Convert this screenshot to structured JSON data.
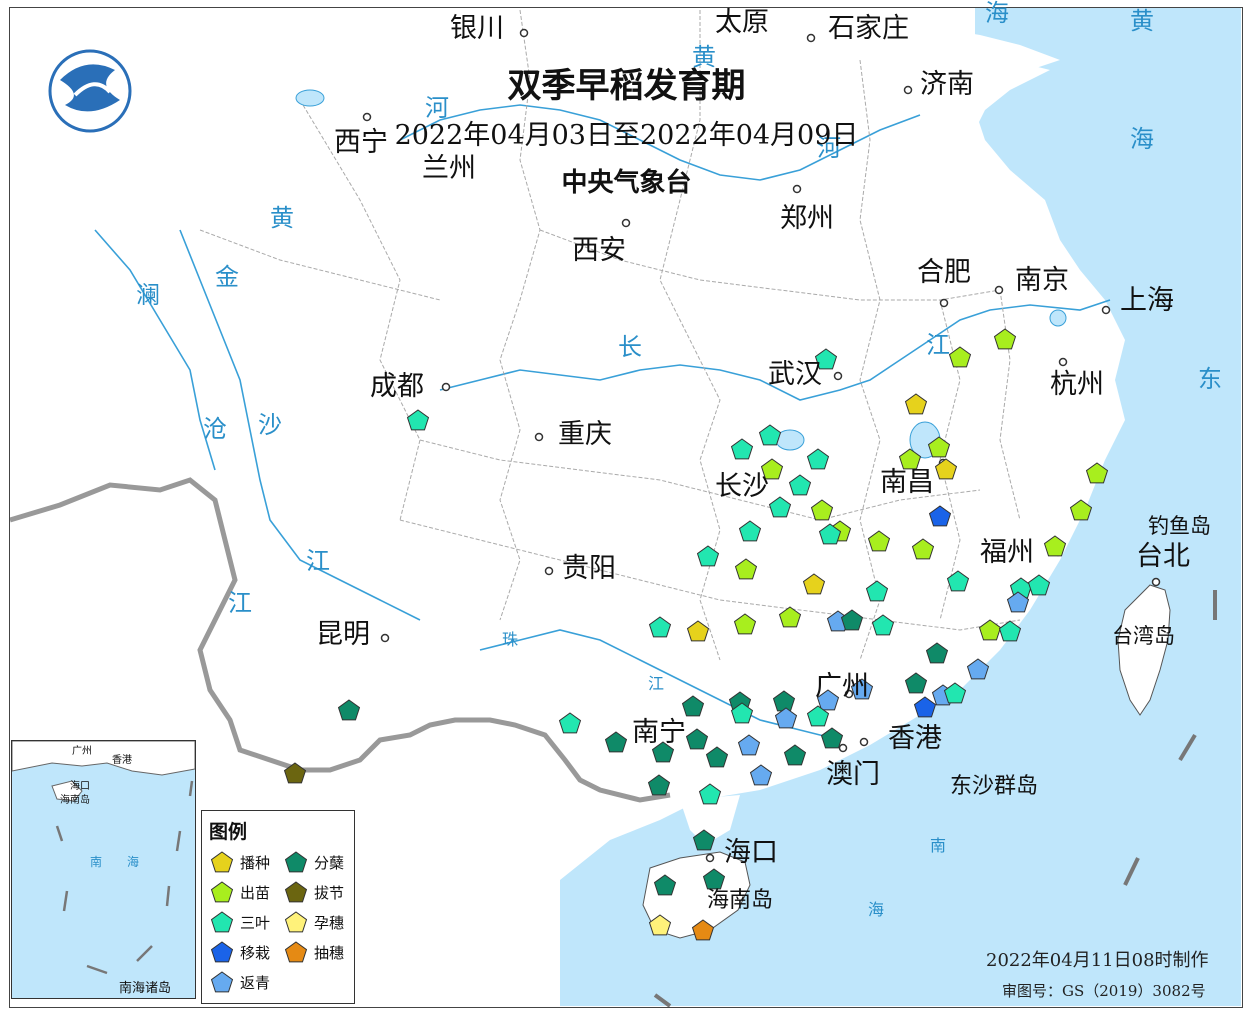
{
  "header": {
    "title": "双季早稻发育期",
    "date_range": "2022年04月03日至2022年04月09日",
    "issuer": "中央气象台"
  },
  "footer": {
    "made": "2022年04月11日08时制作",
    "review_no": "审图号：GS（2019）3082号"
  },
  "legend": {
    "title": "图例",
    "items": [
      {
        "label": "播种",
        "color": "#e6d21c"
      },
      {
        "label": "出苗",
        "color": "#a8ee1e"
      },
      {
        "label": "三叶",
        "color": "#22e6b0"
      },
      {
        "label": "移栽",
        "color": "#1a63e8"
      },
      {
        "label": "返青",
        "color": "#66aaf0"
      },
      {
        "label": "分蘖",
        "color": "#0f8a68"
      },
      {
        "label": "拔节",
        "color": "#6b6510"
      },
      {
        "label": "孕穗",
        "color": "#fff27a"
      },
      {
        "label": "抽穗",
        "color": "#e58a14"
      }
    ]
  },
  "cities": [
    "银川",
    "太原",
    "石家庄",
    "济南",
    "西宁",
    "兰州",
    "郑州",
    "西安",
    "合肥",
    "南京",
    "上海",
    "武汉",
    "杭州",
    "成都",
    "重庆",
    "长沙",
    "南昌",
    "福州",
    "台北",
    "贵阳",
    "昆明",
    "广州",
    "南宁",
    "香港",
    "澳门",
    "海口"
  ],
  "geo_labels": [
    "黄",
    "海",
    "黄",
    "河",
    "河",
    "黄",
    "金",
    "澜",
    "长",
    "江",
    "沧",
    "沙",
    "江",
    "江",
    "东",
    "钓鱼岛",
    "台湾岛",
    "珠",
    "江",
    "东沙群岛",
    "南",
    "海",
    "海南岛"
  ],
  "inset": {
    "labels": [
      "广州",
      "香港",
      "海口",
      "海南岛",
      "南",
      "海",
      "南海诸岛"
    ]
  },
  "stations": [
    {
      "s": "三叶"
    },
    {
      "s": "三叶"
    },
    {
      "s": "三叶"
    },
    {
      "s": "三叶"
    },
    {
      "s": "三叶"
    },
    {
      "s": "出苗"
    },
    {
      "s": "三叶"
    },
    {
      "s": "三叶"
    },
    {
      "s": "出苗"
    },
    {
      "s": "出苗"
    },
    {
      "s": "播种"
    },
    {
      "s": "出苗"
    },
    {
      "s": "出苗"
    },
    {
      "s": "播种"
    },
    {
      "s": "播种"
    },
    {
      "s": "出苗"
    },
    {
      "s": "移栽"
    },
    {
      "s": "三叶"
    },
    {
      "s": "出苗"
    },
    {
      "s": "出苗"
    },
    {
      "s": "出苗"
    },
    {
      "s": "三叶"
    },
    {
      "s": "出苗"
    },
    {
      "s": "出苗"
    },
    {
      "s": "三叶"
    },
    {
      "s": "出苗"
    },
    {
      "s": "播种"
    },
    {
      "s": "三叶"
    },
    {
      "s": "三叶"
    },
    {
      "s": "三叶"
    },
    {
      "s": "三叶"
    },
    {
      "s": "出苗"
    },
    {
      "s": "出苗"
    },
    {
      "s": "出苗"
    },
    {
      "s": "返青"
    },
    {
      "s": "分蘖"
    },
    {
      "s": "三叶"
    },
    {
      "s": "三叶"
    },
    {
      "s": "三叶"
    },
    {
      "s": "返青"
    },
    {
      "s": "出苗"
    },
    {
      "s": "返青"
    },
    {
      "s": "分蘖"
    },
    {
      "s": "返青"
    },
    {
      "s": "分蘖"
    },
    {
      "s": "三叶"
    },
    {
      "s": "返青"
    },
    {
      "s": "移栽"
    },
    {
      "s": "返青"
    },
    {
      "s": "分蘖"
    },
    {
      "s": "三叶"
    },
    {
      "s": "分蘖"
    },
    {
      "s": "返青"
    },
    {
      "s": "分蘖"
    },
    {
      "s": "三叶"
    },
    {
      "s": "分蘖"
    },
    {
      "s": "分蘖"
    },
    {
      "s": "三叶"
    },
    {
      "s": "分蘖"
    },
    {
      "s": "返青"
    },
    {
      "s": "分蘖"
    },
    {
      "s": "分蘖"
    },
    {
      "s": "返青"
    },
    {
      "s": "分蘖"
    },
    {
      "s": "分蘖"
    },
    {
      "s": "三叶"
    },
    {
      "s": "分蘖"
    },
    {
      "s": "分蘖"
    },
    {
      "s": "抽穗"
    },
    {
      "s": "孕穗"
    },
    {
      "s": "分蘖"
    },
    {
      "s": "拔节"
    },
    {
      "s": "分蘖"
    }
  ]
}
